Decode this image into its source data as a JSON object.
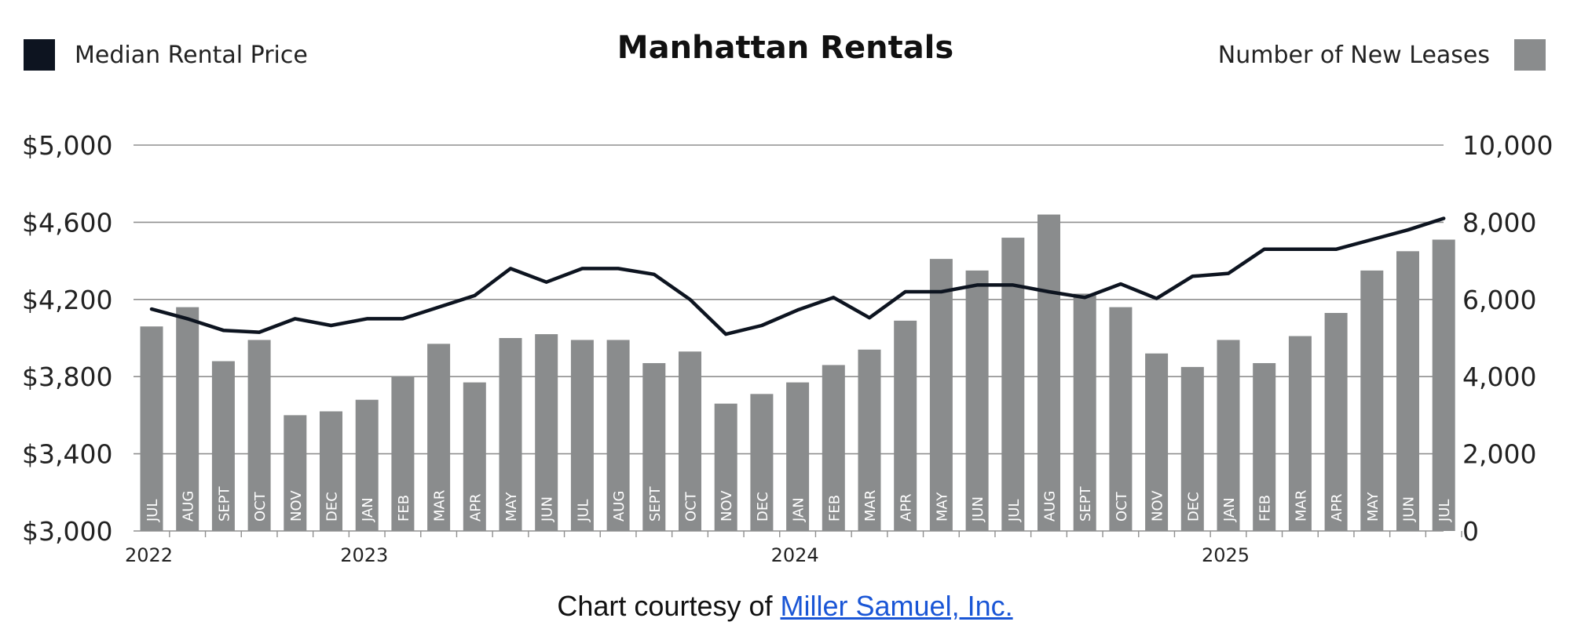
{
  "chart_data": {
    "type": "bar",
    "title": "Manhattan Rentals",
    "legend": {
      "left": "Median Rental Price",
      "right": "Number of New Leases"
    },
    "categories": [
      "JUL",
      "AUG",
      "SEPT",
      "OCT",
      "NOV",
      "DEC",
      "JAN",
      "FEB",
      "MAR",
      "APR",
      "MAY",
      "JUN",
      "JUL",
      "AUG",
      "SEPT",
      "OCT",
      "NOV",
      "DEC",
      "JAN",
      "FEB",
      "MAR",
      "APR",
      "MAY",
      "JUN",
      "JUL",
      "AUG",
      "SEPT",
      "OCT",
      "NOV",
      "DEC",
      "JAN",
      "FEB",
      "MAR",
      "APR",
      "MAY",
      "JUN",
      "JUL"
    ],
    "years": [
      {
        "label": "2022",
        "index": 0
      },
      {
        "label": "2023",
        "index": 6
      },
      {
        "label": "2024",
        "index": 18
      },
      {
        "label": "2025",
        "index": 30
      }
    ],
    "series": [
      {
        "name": "Number of New Leases",
        "type": "bar",
        "axis": "right",
        "values": [
          5300,
          5800,
          4400,
          4950,
          3000,
          3100,
          3400,
          4000,
          4850,
          3850,
          5000,
          5100,
          4950,
          4950,
          4350,
          4650,
          3300,
          3550,
          3850,
          4300,
          4700,
          5450,
          7050,
          6750,
          7600,
          8200,
          6150,
          5800,
          4600,
          4250,
          4950,
          4350,
          5050,
          5650,
          6750,
          7250,
          7550
        ]
      },
      {
        "name": "Median Rental Price",
        "type": "line",
        "axis": "left",
        "values": [
          4150,
          4100,
          4040,
          4030,
          4100,
          4065,
          4100,
          4100,
          4160,
          4220,
          4360,
          4290,
          4360,
          4360,
          4330,
          4200,
          4020,
          4065,
          4145,
          4210,
          4105,
          4240,
          4240,
          4275,
          4275,
          4240,
          4210,
          4280,
          4205,
          4320,
          4335,
          4460,
          4460,
          4460,
          4510,
          4560,
          4620
        ]
      }
    ],
    "y_left": {
      "min": 3000,
      "max": 5000,
      "ticks": [
        "$5,000",
        "$4,600",
        "$4,200",
        "$3,800",
        "$3,400",
        "$3,000"
      ]
    },
    "y_right": {
      "min": 0,
      "max": 10000,
      "ticks": [
        "10,000",
        "8,000",
        "6,000",
        "4,000",
        "2,000",
        "0"
      ]
    },
    "grid": true,
    "colors": {
      "bar": "#8a8c8d",
      "line": "#0d1420",
      "grid": "#8f8f8f"
    }
  },
  "credit": {
    "prefix": "Chart courtesy of",
    "link_text": "Miller Samuel, Inc."
  }
}
